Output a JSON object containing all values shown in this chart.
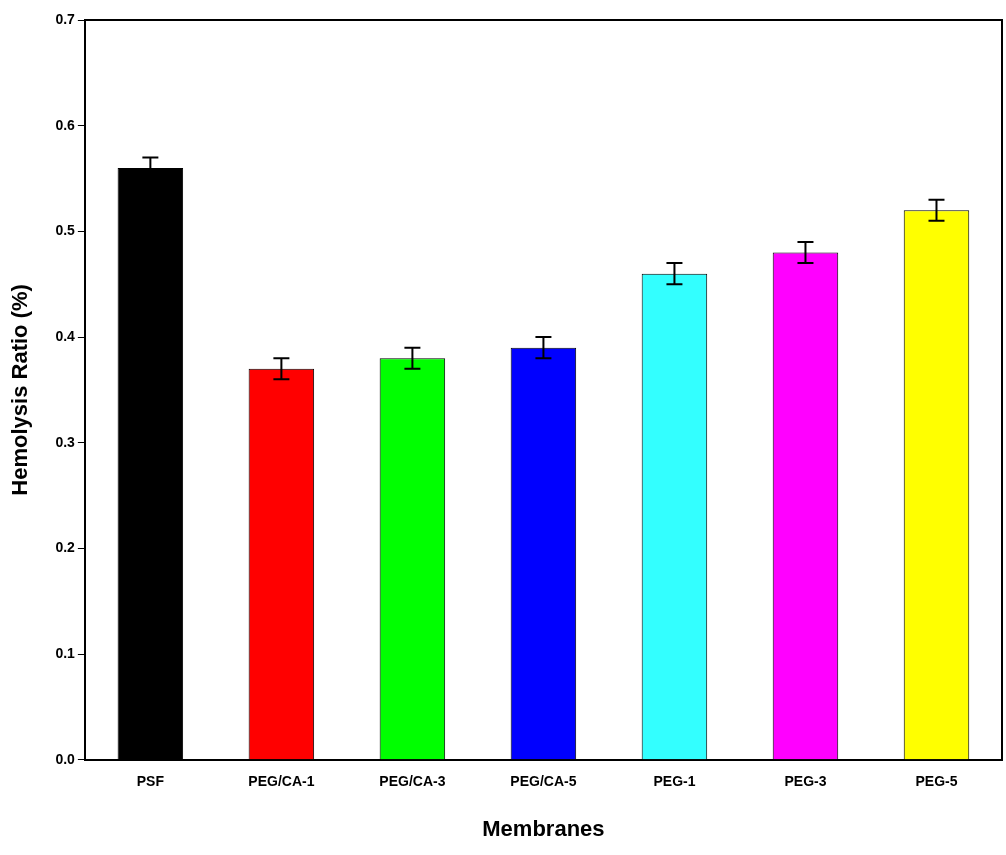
{
  "chart_data": {
    "type": "bar",
    "xlabel": "Membranes",
    "ylabel": "Hemolysis Ratio (%)",
    "categories": [
      "PSF",
      "PEG/CA-1",
      "PEG/CA-3",
      "PEG/CA-5",
      "PEG-1",
      "PEG-3",
      "PEG-5"
    ],
    "values": [
      0.56,
      0.37,
      0.38,
      0.39,
      0.46,
      0.48,
      0.52
    ],
    "errors": [
      0.01,
      0.01,
      0.01,
      0.01,
      0.01,
      0.01,
      0.01
    ],
    "colors": [
      "#000000",
      "#ff0000",
      "#00ff00",
      "#0000ff",
      "#33ffff",
      "#ff00ff",
      "#ffff00"
    ],
    "ylim": [
      0,
      0.7
    ],
    "yticks": [
      {
        "value": 0,
        "label": "0.0"
      },
      {
        "value": 0.1,
        "label": "0.1"
      },
      {
        "value": 0.2,
        "label": "0.2"
      },
      {
        "value": 0.3,
        "label": "0.3"
      },
      {
        "value": 0.4,
        "label": "0.4"
      },
      {
        "value": 0.5,
        "label": "0.5"
      },
      {
        "value": 0.6,
        "label": "0.6"
      },
      {
        "value": 0.7,
        "label": "0.7"
      }
    ],
    "grid": false,
    "legend": false
  }
}
